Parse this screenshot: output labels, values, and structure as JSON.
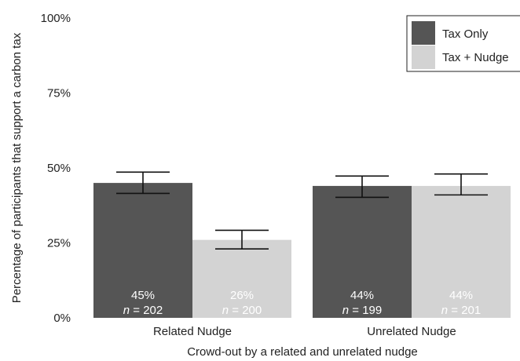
{
  "chart_data": {
    "type": "bar",
    "title": "",
    "xlabel": "Crowd-out by a related and unrelated nudge",
    "ylabel": "Percentage of participants that support a carbon tax",
    "ylim": [
      0,
      100
    ],
    "yticks": [
      0,
      25,
      50,
      75,
      100
    ],
    "ytick_labels": [
      "0%",
      "25%",
      "50%",
      "75%",
      "100%"
    ],
    "categories": [
      "Related Nudge",
      "Unrelated Nudge"
    ],
    "series": [
      {
        "name": "Tax Only",
        "color": "#555555",
        "values": [
          45,
          44
        ],
        "err_low": [
          41.5,
          40.2
        ],
        "err_high": [
          48.6,
          47.3
        ],
        "value_labels": [
          "45%",
          "44%"
        ],
        "n": [
          "202",
          "199"
        ]
      },
      {
        "name": "Tax + Nudge",
        "color": "#d3d3d3",
        "values": [
          26,
          44
        ],
        "err_low": [
          23,
          41
        ],
        "err_high": [
          29.2,
          48
        ],
        "value_labels": [
          "26%",
          "44%"
        ],
        "n": [
          "200",
          "201"
        ]
      }
    ],
    "n_prefix": "n",
    "n_separator": " = ",
    "legend": {
      "placement": "top-right",
      "labels": [
        "Tax Only",
        "Tax + Nudge"
      ]
    },
    "grid": false
  }
}
